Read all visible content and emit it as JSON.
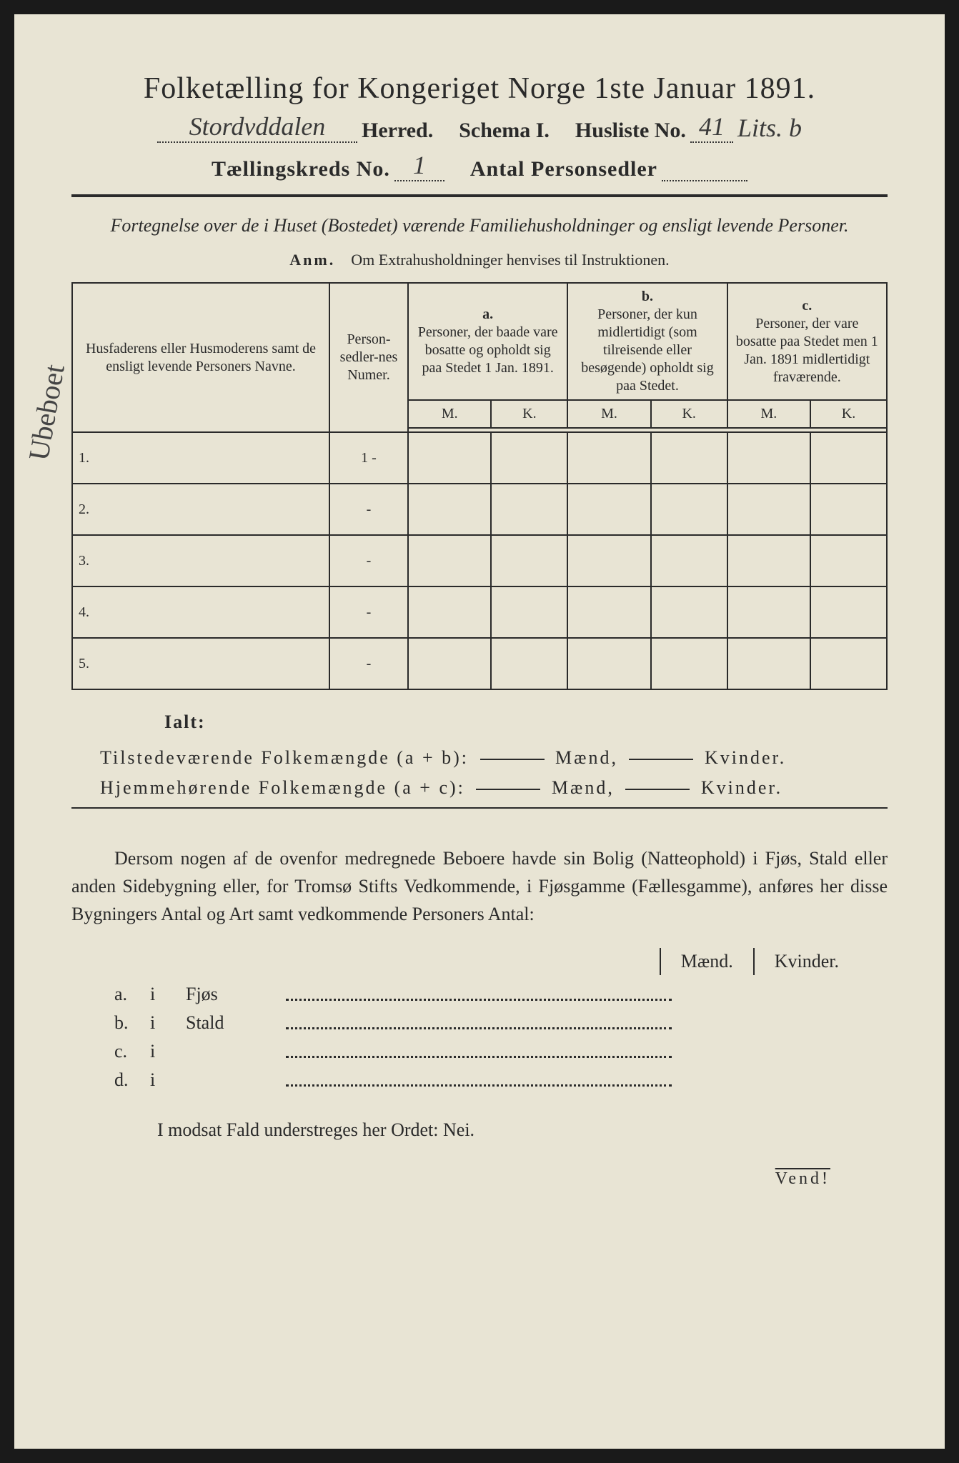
{
  "colors": {
    "paper": "#e8e4d4",
    "ink": "#2a2a2a",
    "background": "#1a1a1a"
  },
  "header": {
    "title": "Folketælling for Kongeriget Norge 1ste Januar 1891.",
    "herred_handwritten": "Stordvddalen",
    "herred_label": "Herred.",
    "schema_label": "Schema I.",
    "husliste_label": "Husliste No.",
    "husliste_value": "41",
    "husliste_suffix_handwritten": "Lits. b",
    "kreds_label": "Tællingskreds No.",
    "kreds_value": "1",
    "personsedler_label": "Antal Personsedler",
    "personsedler_value": ""
  },
  "subtitle": "Fortegnelse over de i Huset (Bostedet) værende Familiehusholdninger og ensligt levende Personer.",
  "anm": {
    "label": "Anm.",
    "text": "Om Extrahusholdninger henvises til Instruktionen."
  },
  "table": {
    "col_names": "Husfaderens eller Husmoderens samt de ensligt levende Personers Navne.",
    "col_numer": "Person-sedler-nes Numer.",
    "col_a_top": "a.",
    "col_a": "Personer, der baade vare bosatte og opholdt sig paa Stedet 1 Jan. 1891.",
    "col_b_top": "b.",
    "col_b": "Personer, der kun midlertidigt (som tilreisende eller besøgende) opholdt sig paa Stedet.",
    "col_c_top": "c.",
    "col_c": "Personer, der vare bosatte paa Stedet men 1 Jan. 1891 midlertidigt fraværende.",
    "m": "M.",
    "k": "K.",
    "rows": [
      {
        "n": "1.",
        "numer": "1 -"
      },
      {
        "n": "2.",
        "numer": "-"
      },
      {
        "n": "3.",
        "numer": "-"
      },
      {
        "n": "4.",
        "numer": "-"
      },
      {
        "n": "5.",
        "numer": "-"
      }
    ]
  },
  "ialt": "Ialt:",
  "summary": {
    "line1_label": "Tilstedeværende Folkemængde (a + b):",
    "line2_label": "Hjemmehørende Folkemængde (a + c):",
    "maend": "Mænd,",
    "kvinder": "Kvinder."
  },
  "para": "Dersom nogen af de ovenfor medregnede Beboere havde sin Bolig (Natteophold) i Fjøs, Stald eller anden Sidebygning eller, for Tromsø Stifts Vedkommende, i Fjøsgamme (Fællesgamme), anføres her disse Bygningers Antal og Art samt vedkommende Personers Antal:",
  "mk": {
    "maend": "Mænd.",
    "kvinder": "Kvinder."
  },
  "lodging": [
    {
      "key": "a.",
      "i": "i",
      "place": "Fjøs"
    },
    {
      "key": "b.",
      "i": "i",
      "place": "Stald"
    },
    {
      "key": "c.",
      "i": "i",
      "place": ""
    },
    {
      "key": "d.",
      "i": "i",
      "place": ""
    }
  ],
  "nei": "I modsat Fald understreges her Ordet: Nei.",
  "vend": "Vend!",
  "side_note": "Ubeboet"
}
